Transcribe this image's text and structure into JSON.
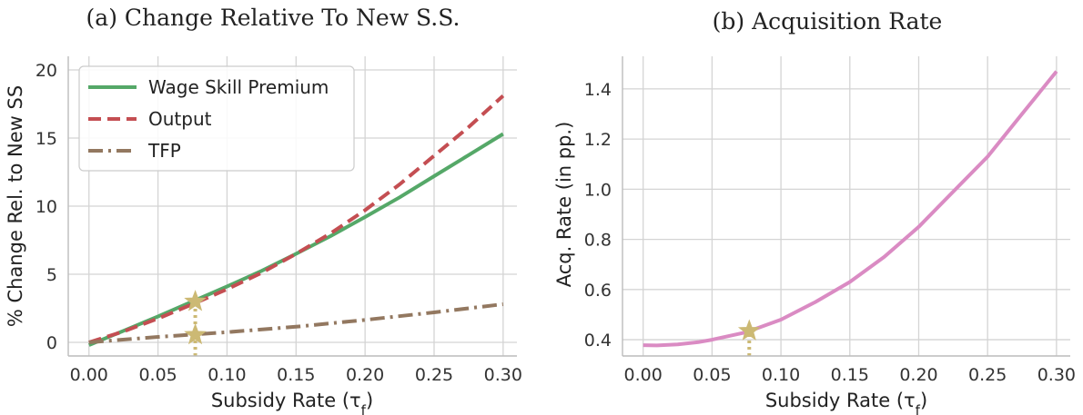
{
  "chart_data": [
    {
      "type": "line",
      "title": "(a) Change Relative To New S.S.",
      "xlabel": "Subsidy Rate (τf)",
      "ylabel": "% Change Rel. to New SS",
      "xlim": [
        -0.015,
        0.31
      ],
      "ylim": [
        -1,
        21
      ],
      "xticks": [
        0.0,
        0.05,
        0.1,
        0.15,
        0.2,
        0.25,
        0.3
      ],
      "xtick_labels": [
        "0.00",
        "0.05",
        "0.10",
        "0.15",
        "0.20",
        "0.25",
        "0.30"
      ],
      "yticks": [
        0,
        5,
        10,
        15,
        20
      ],
      "ytick_labels": [
        "0",
        "5",
        "10",
        "15",
        "20"
      ],
      "grid": true,
      "legend_position": "top-left",
      "series": [
        {
          "name": "Wage Skill Premium",
          "color": "#55a868",
          "style": "solid",
          "x": [
            0.0,
            0.025,
            0.05,
            0.075,
            0.1,
            0.125,
            0.15,
            0.175,
            0.2,
            0.225,
            0.25,
            0.275,
            0.3
          ],
          "y": [
            -0.2,
            0.85,
            1.9,
            3.0,
            4.1,
            5.25,
            6.5,
            7.8,
            9.2,
            10.65,
            12.2,
            13.75,
            15.3
          ]
        },
        {
          "name": "Output",
          "color": "#c44e52",
          "style": "dashed",
          "x": [
            0.0,
            0.025,
            0.05,
            0.075,
            0.1,
            0.125,
            0.15,
            0.175,
            0.2,
            0.225,
            0.25,
            0.275,
            0.3
          ],
          "y": [
            0.0,
            0.8,
            1.75,
            2.8,
            3.9,
            5.1,
            6.5,
            8.0,
            9.7,
            11.6,
            13.7,
            15.8,
            18.1
          ]
        },
        {
          "name": "TFP",
          "color": "#937860",
          "style": "dashdot",
          "x": [
            0.0,
            0.05,
            0.1,
            0.15,
            0.2,
            0.25,
            0.3
          ],
          "y": [
            0.0,
            0.4,
            0.75,
            1.15,
            1.65,
            2.2,
            2.8
          ]
        }
      ],
      "markers": [
        {
          "shape": "star",
          "color": "#ccb974",
          "x": 0.077,
          "y": 3.0
        },
        {
          "shape": "star",
          "color": "#ccb974",
          "x": 0.077,
          "y": 0.55
        }
      ],
      "vlines": [
        {
          "x": 0.077,
          "color": "#ccb974",
          "style": "dotted",
          "to_y": 3.0
        }
      ]
    },
    {
      "type": "line",
      "title": "(b) Acquisition Rate",
      "xlabel": "Subsidy Rate (τf)",
      "ylabel": "Acq. Rate (in pp.)",
      "xlim": [
        -0.015,
        0.31
      ],
      "ylim": [
        0.335,
        1.53
      ],
      "xticks": [
        0.0,
        0.05,
        0.1,
        0.15,
        0.2,
        0.25,
        0.3
      ],
      "xtick_labels": [
        "0.00",
        "0.05",
        "0.10",
        "0.15",
        "0.20",
        "0.25",
        "0.30"
      ],
      "yticks": [
        0.4,
        0.6,
        0.8,
        1.0,
        1.2,
        1.4
      ],
      "ytick_labels": [
        "0.4",
        "0.6",
        "0.8",
        "1.0",
        "1.2",
        "1.4"
      ],
      "grid": true,
      "series": [
        {
          "color": "#da8bc3",
          "style": "solid",
          "x": [
            0.0,
            0.01,
            0.025,
            0.04,
            0.05,
            0.075,
            0.1,
            0.125,
            0.15,
            0.175,
            0.2,
            0.225,
            0.25,
            0.275,
            0.3
          ],
          "y": [
            0.378,
            0.377,
            0.381,
            0.39,
            0.4,
            0.43,
            0.48,
            0.55,
            0.63,
            0.73,
            0.85,
            0.99,
            1.13,
            1.3,
            1.47
          ]
        }
      ],
      "markers": [
        {
          "shape": "star",
          "color": "#ccb974",
          "x": 0.077,
          "y": 0.435
        }
      ],
      "vlines": [
        {
          "x": 0.077,
          "color": "#ccb974",
          "style": "dotted",
          "to_y": 0.435
        }
      ]
    }
  ]
}
